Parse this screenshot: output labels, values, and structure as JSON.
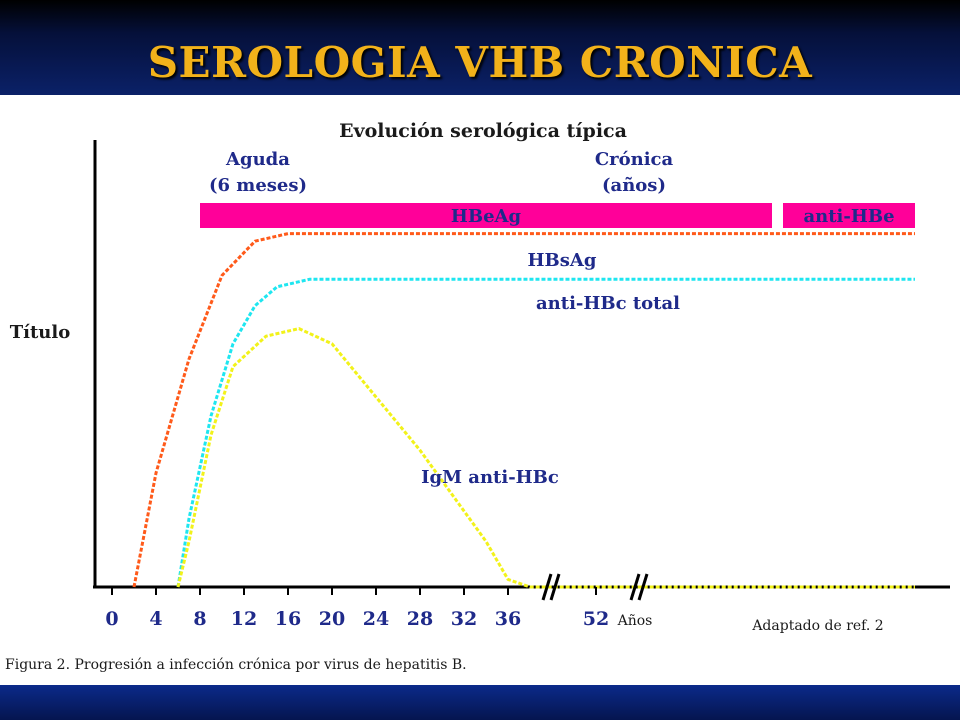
{
  "slide": {
    "title": "SEROLOGIA VHB CRONICA"
  },
  "chart_data": {
    "type": "line",
    "title": "Evolución serológica típica",
    "phase_labels": [
      {
        "lines": [
          "Aguda",
          "(6 meses)"
        ]
      },
      {
        "lines": [
          "Crónica",
          "(años)"
        ]
      }
    ],
    "phase_bars": [
      {
        "label": "HBeAg",
        "color": "#ff0099",
        "x_start": 8,
        "x_end": 60
      },
      {
        "label": "anti-HBe",
        "color": "#ff0099",
        "x_start": 61,
        "x_end": 73
      }
    ],
    "ylabel": "Título",
    "x_ticks": [
      "0",
      "4",
      "8",
      "12",
      "16",
      "20",
      "24",
      "28",
      "32",
      "36",
      "52"
    ],
    "x_tick_values": [
      0,
      4,
      8,
      12,
      16,
      20,
      24,
      28,
      32,
      36,
      44
    ],
    "x_unit_label": "Años",
    "x_range": [
      0,
      80
    ],
    "y_range": [
      0,
      100
    ],
    "series": [
      {
        "name": "HBsAg",
        "color": "#ff5a1a",
        "points": [
          [
            2,
            0
          ],
          [
            4,
            30
          ],
          [
            7,
            60
          ],
          [
            10,
            82
          ],
          [
            13,
            91
          ],
          [
            16,
            93
          ],
          [
            73,
            93
          ]
        ]
      },
      {
        "name": "anti-HBc total",
        "color": "#1ee6f0",
        "points": [
          [
            6,
            0
          ],
          [
            7,
            18
          ],
          [
            9,
            45
          ],
          [
            11,
            64
          ],
          [
            13,
            74
          ],
          [
            15,
            79
          ],
          [
            18,
            81
          ],
          [
            73,
            81
          ]
        ]
      },
      {
        "name": "IgM anti-HBc",
        "color": "#f2f21a",
        "points": [
          [
            6,
            0
          ],
          [
            7,
            12
          ],
          [
            9,
            40
          ],
          [
            11,
            58
          ],
          [
            14,
            66
          ],
          [
            17,
            68
          ],
          [
            20,
            64
          ],
          [
            28,
            36
          ],
          [
            34,
            12
          ],
          [
            36,
            2
          ],
          [
            38,
            0
          ],
          [
            73,
            0
          ]
        ]
      }
    ],
    "axis_breaks": [
      40,
      48
    ],
    "source": "Adaptado de ref. 2",
    "caption": "Figura 2. Progresión a infección crónica por virus de hepatitis B."
  }
}
